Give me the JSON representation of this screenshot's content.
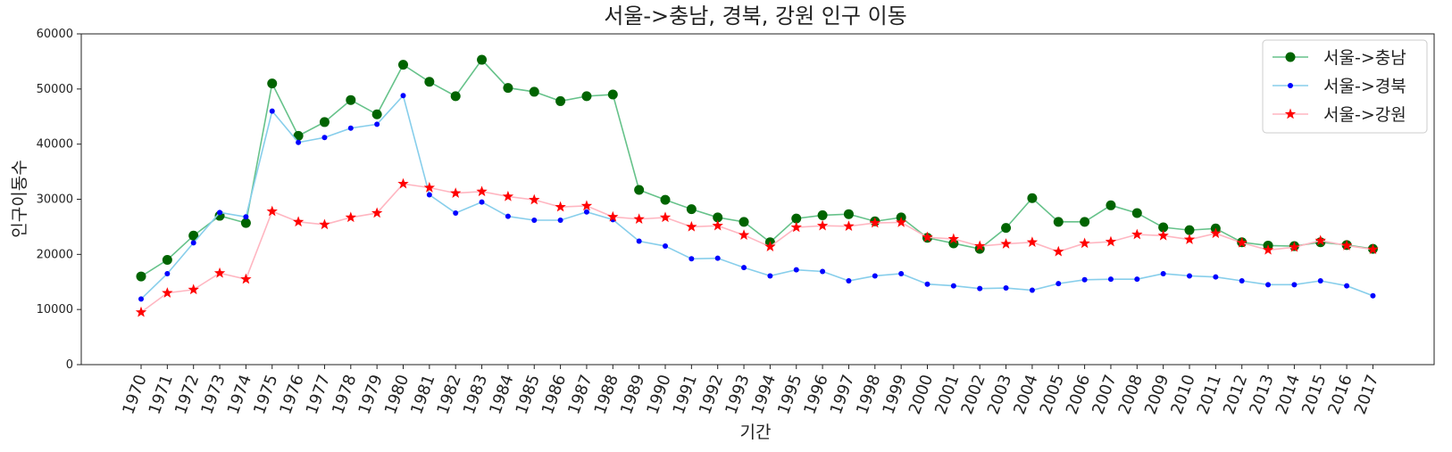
{
  "chart_data": {
    "type": "line",
    "title": "서울->충남, 경북, 강원 인구 이동",
    "xlabel": "기간",
    "ylabel": "인구이동수",
    "ylim": [
      0,
      60000
    ],
    "yticks": [
      0,
      10000,
      20000,
      30000,
      40000,
      50000,
      60000
    ],
    "ytick_labels": [
      "0",
      "10000",
      "20000",
      "30000",
      "40000",
      "50000",
      "60000"
    ],
    "grid": false,
    "legend_position": "top-right",
    "categories": [
      "1970",
      "1971",
      "1972",
      "1973",
      "1974",
      "1975",
      "1976",
      "1977",
      "1978",
      "1979",
      "1980",
      "1981",
      "1982",
      "1983",
      "1984",
      "1985",
      "1986",
      "1987",
      "1988",
      "1989",
      "1990",
      "1991",
      "1992",
      "1993",
      "1994",
      "1995",
      "1996",
      "1997",
      "1998",
      "1999",
      "2000",
      "2001",
      "2002",
      "2003",
      "2004",
      "2005",
      "2006",
      "2007",
      "2008",
      "2009",
      "2010",
      "2011",
      "2012",
      "2013",
      "2014",
      "2015",
      "2016",
      "2017"
    ],
    "series": [
      {
        "name": "서울->충남",
        "line_color": "#66c28a",
        "marker_color": "#006400",
        "marker": "circle",
        "values": [
          16000,
          19000,
          23400,
          27000,
          25700,
          51000,
          41500,
          44000,
          48000,
          45400,
          54400,
          51300,
          48700,
          55300,
          50200,
          49500,
          47800,
          48700,
          49000,
          31700,
          29900,
          28200,
          26700,
          25900,
          22200,
          26500,
          27100,
          27300,
          26000,
          26700,
          23000,
          22000,
          21000,
          24800,
          30200,
          25900,
          25900,
          28900,
          27500,
          24900,
          24400,
          24700,
          22200,
          21600,
          21500,
          22200,
          21700,
          21000
        ]
      },
      {
        "name": "서울->경북",
        "line_color": "#87ceeb",
        "marker_color": "#0000ff",
        "marker": "dot",
        "values": [
          11900,
          16500,
          22100,
          27600,
          26800,
          46000,
          40300,
          41200,
          42900,
          43600,
          48800,
          30800,
          27500,
          29500,
          26900,
          26200,
          26200,
          27700,
          26300,
          22400,
          21500,
          19200,
          19300,
          17600,
          16100,
          17200,
          16900,
          15200,
          16100,
          16500,
          14600,
          14300,
          13800,
          13900,
          13500,
          14700,
          15400,
          15500,
          15500,
          16500,
          16100,
          15900,
          15200,
          14500,
          14500,
          15200,
          14300,
          12500
        ]
      },
      {
        "name": "서울->강원",
        "line_color": "#ffb6c1",
        "marker_color": "#ff0000",
        "marker": "star",
        "values": [
          9500,
          13000,
          13600,
          16600,
          15500,
          27800,
          25900,
          25400,
          26700,
          27500,
          32800,
          32100,
          31100,
          31400,
          30500,
          29900,
          28600,
          28800,
          26800,
          26400,
          26700,
          25000,
          25200,
          23500,
          21400,
          24900,
          25200,
          25100,
          25700,
          25800,
          23100,
          22800,
          21500,
          21900,
          22200,
          20500,
          22000,
          22300,
          23600,
          23400,
          22700,
          23800,
          22100,
          20800,
          21300,
          22500,
          21600,
          20900
        ]
      }
    ]
  }
}
